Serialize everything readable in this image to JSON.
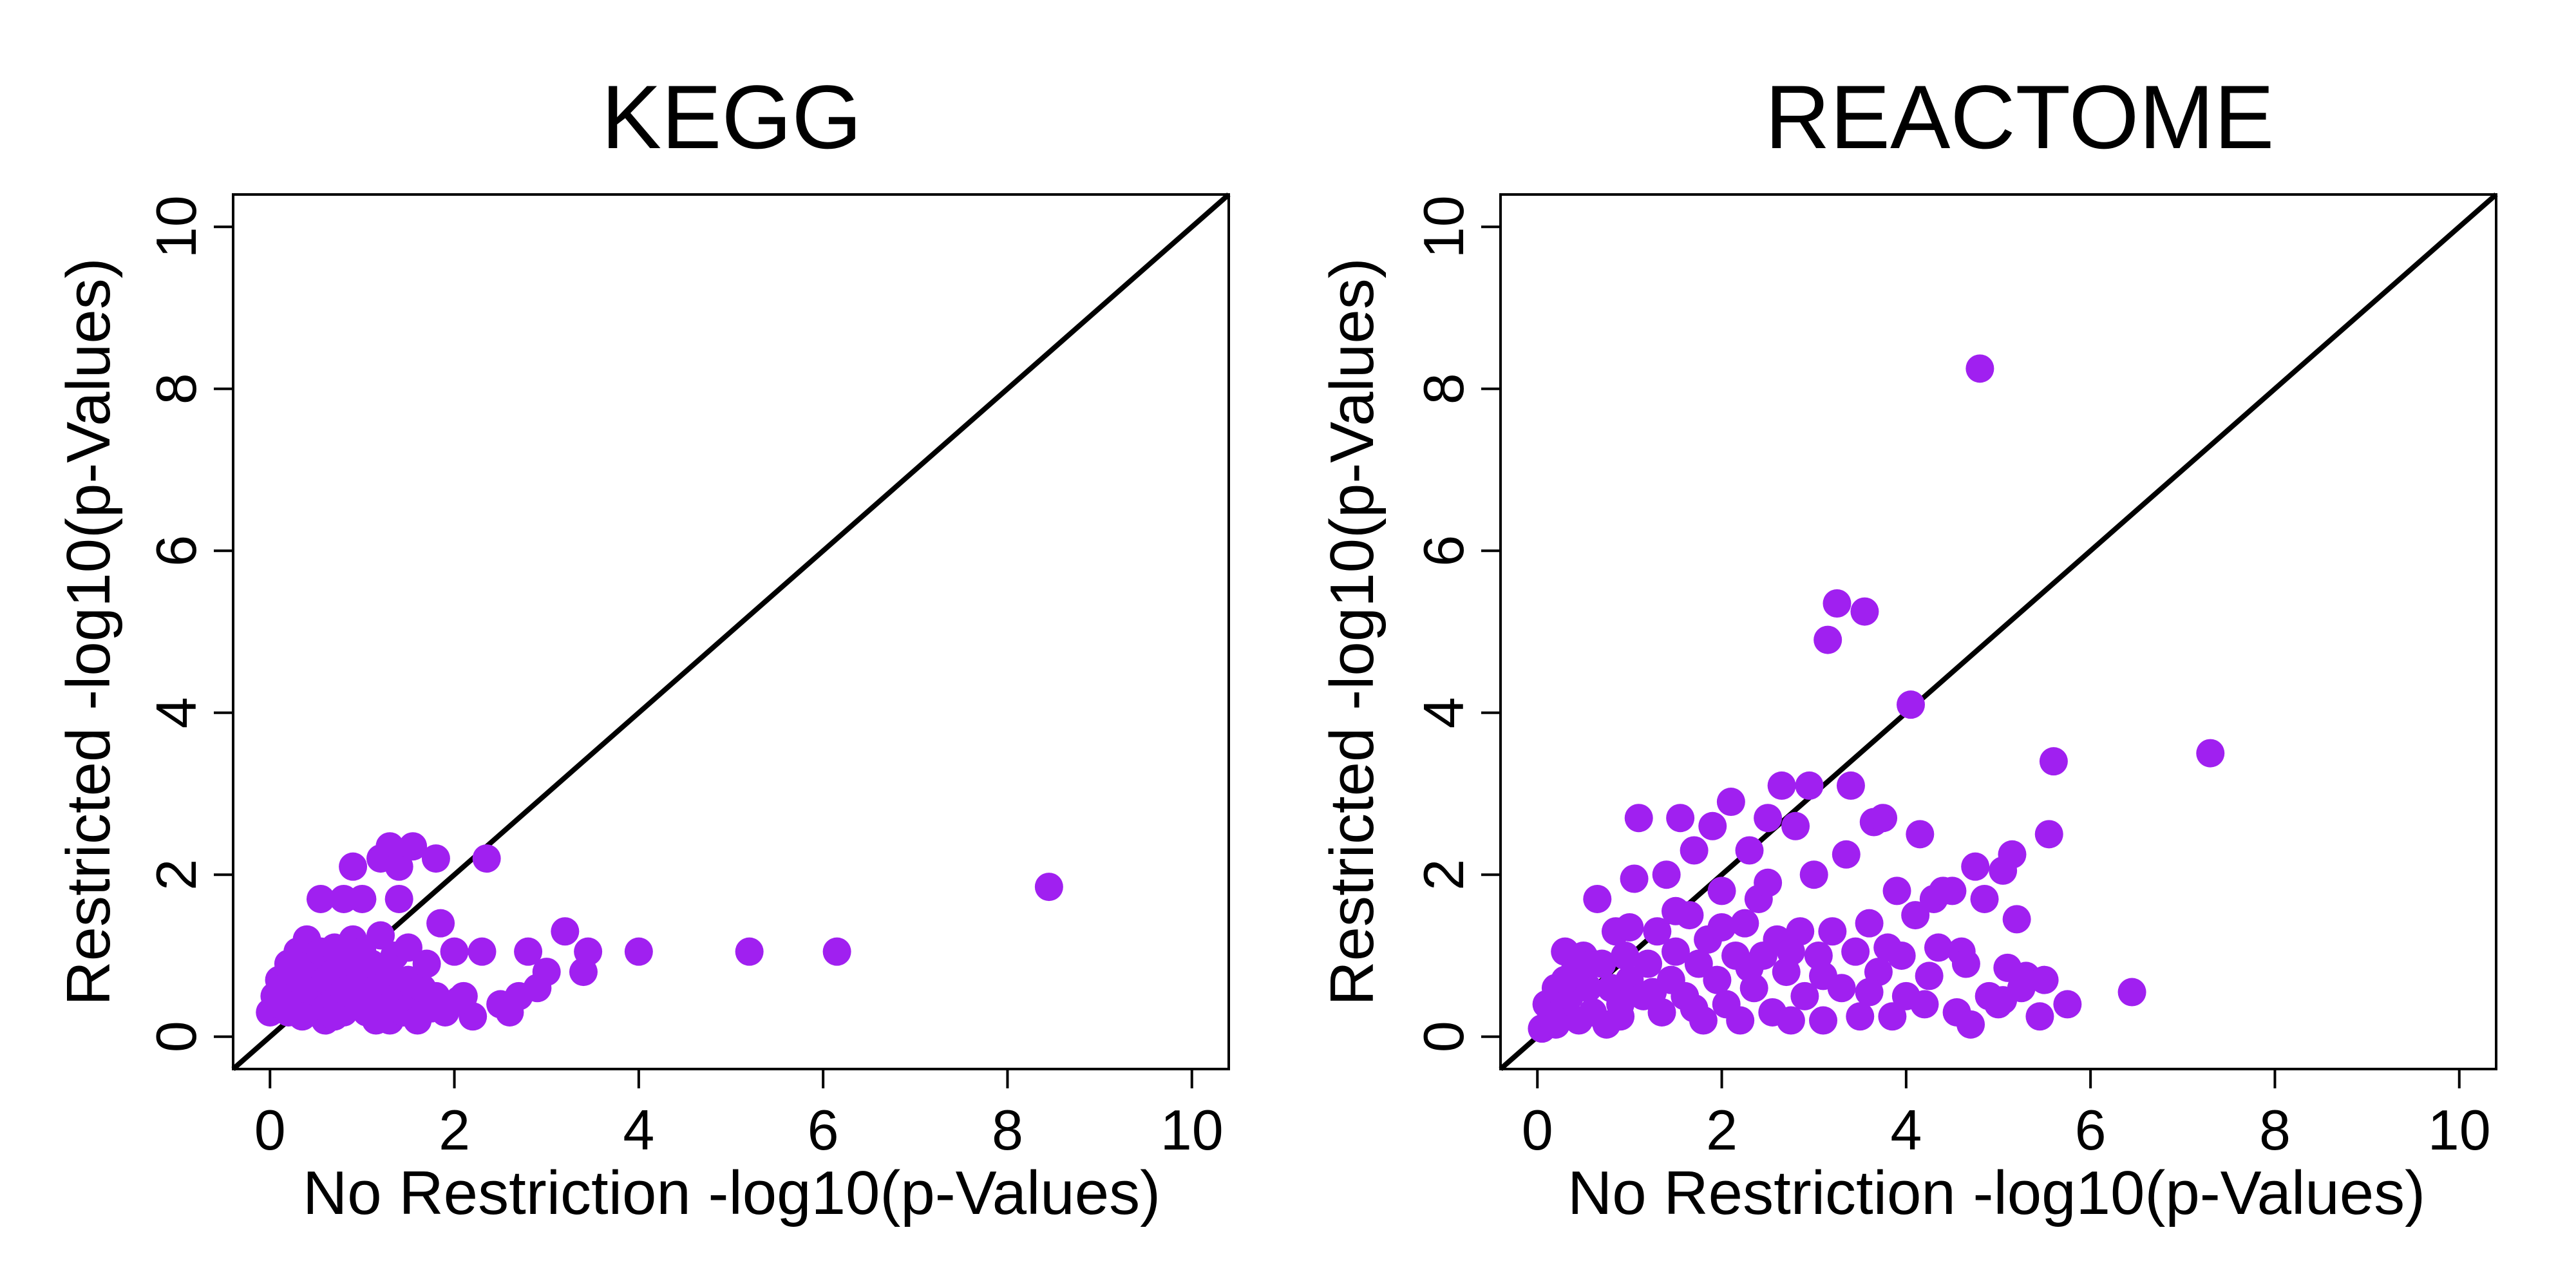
{
  "colors": {
    "point": "#A020F0",
    "line": "#000000"
  },
  "chart_data": [
    {
      "type": "scatter",
      "title": "KEGG",
      "xlabel": "No Restriction -log10(p-Values)",
      "ylabel": "Restricted -log10(p-Values)",
      "xlim": [
        -0.4,
        10.4
      ],
      "ylim": [
        -0.4,
        10.4
      ],
      "xticks": [
        0,
        2,
        4,
        6,
        8,
        10
      ],
      "yticks": [
        0,
        2,
        4,
        6,
        8,
        10
      ],
      "grid": false,
      "reference_line": "y = x",
      "points": [
        [
          0.0,
          0.3
        ],
        [
          0.05,
          0.5
        ],
        [
          0.1,
          0.4
        ],
        [
          0.1,
          0.7
        ],
        [
          0.15,
          0.6
        ],
        [
          0.2,
          0.3
        ],
        [
          0.2,
          0.9
        ],
        [
          0.25,
          0.5
        ],
        [
          0.3,
          1.05
        ],
        [
          0.3,
          0.4
        ],
        [
          0.35,
          0.8
        ],
        [
          0.4,
          1.2
        ],
        [
          0.4,
          0.6
        ],
        [
          0.45,
          0.3
        ],
        [
          0.5,
          0.9
        ],
        [
          0.5,
          0.5
        ],
        [
          0.55,
          1.05
        ],
        [
          0.6,
          0.2
        ],
        [
          0.6,
          0.7
        ],
        [
          0.65,
          0.4
        ],
        [
          0.7,
          1.1
        ],
        [
          0.7,
          0.8
        ],
        [
          0.75,
          0.5
        ],
        [
          0.8,
          0.9
        ],
        [
          0.8,
          0.3
        ],
        [
          0.85,
          1.0
        ],
        [
          0.9,
          0.6
        ],
        [
          0.9,
          1.2
        ],
        [
          0.95,
          0.4
        ],
        [
          1.0,
          0.8
        ],
        [
          1.0,
          1.05
        ],
        [
          1.05,
          0.3
        ],
        [
          1.1,
          0.5
        ],
        [
          1.1,
          0.9
        ],
        [
          1.15,
          0.2
        ],
        [
          1.2,
          0.6
        ],
        [
          1.2,
          1.25
        ],
        [
          1.25,
          0.4
        ],
        [
          1.3,
          0.8
        ],
        [
          1.3,
          0.2
        ],
        [
          1.35,
          1.0
        ],
        [
          1.4,
          0.5
        ],
        [
          1.45,
          0.3
        ],
        [
          1.5,
          0.7
        ],
        [
          1.5,
          1.1
        ],
        [
          1.55,
          0.4
        ],
        [
          1.6,
          0.2
        ],
        [
          1.65,
          0.6
        ],
        [
          1.7,
          0.9
        ],
        [
          1.8,
          0.5
        ],
        [
          1.85,
          1.4
        ],
        [
          1.9,
          0.3
        ],
        [
          2.0,
          1.05
        ],
        [
          2.1,
          0.5
        ],
        [
          2.2,
          0.25
        ],
        [
          2.3,
          1.05
        ],
        [
          2.5,
          0.4
        ],
        [
          2.6,
          0.3
        ],
        [
          2.7,
          0.5
        ],
        [
          2.8,
          1.05
        ],
        [
          2.9,
          0.6
        ],
        [
          3.0,
          0.8
        ],
        [
          3.2,
          1.3
        ],
        [
          3.4,
          0.8
        ],
        [
          3.45,
          1.05
        ],
        [
          4.0,
          1.05
        ],
        [
          5.2,
          1.05
        ],
        [
          6.15,
          1.05
        ],
        [
          8.45,
          1.85
        ],
        [
          0.55,
          1.7
        ],
        [
          0.8,
          1.7
        ],
        [
          1.0,
          1.7
        ],
        [
          0.9,
          2.1
        ],
        [
          1.2,
          2.2
        ],
        [
          1.3,
          2.35
        ],
        [
          1.4,
          2.1
        ],
        [
          1.55,
          2.35
        ],
        [
          1.8,
          2.2
        ],
        [
          2.35,
          2.2
        ],
        [
          1.4,
          1.7
        ],
        [
          0.25,
          0.8
        ],
        [
          0.35,
          0.25
        ],
        [
          0.6,
          0.35
        ],
        [
          0.7,
          0.25
        ],
        [
          1.25,
          0.35
        ],
        [
          1.75,
          0.35
        ],
        [
          2.05,
          0.45
        ]
      ]
    },
    {
      "type": "scatter",
      "title": "REACTOME",
      "xlabel": "No Restriction -log10(p-Values)",
      "ylabel": "Restricted -log10(p-Values)",
      "xlim": [
        -0.4,
        10.4
      ],
      "ylim": [
        -0.4,
        10.4
      ],
      "xticks": [
        0,
        2,
        4,
        6,
        8,
        10
      ],
      "yticks": [
        0,
        2,
        4,
        6,
        8,
        10
      ],
      "grid": false,
      "reference_line": "y = x",
      "points": [
        [
          0.05,
          0.1
        ],
        [
          0.1,
          0.4
        ],
        [
          0.15,
          0.25
        ],
        [
          0.2,
          0.6
        ],
        [
          0.25,
          0.3
        ],
        [
          0.3,
          1.05
        ],
        [
          0.35,
          0.5
        ],
        [
          0.4,
          0.8
        ],
        [
          0.45,
          0.2
        ],
        [
          0.5,
          1.0
        ],
        [
          0.55,
          0.6
        ],
        [
          0.6,
          0.3
        ],
        [
          0.65,
          1.7
        ],
        [
          0.7,
          0.9
        ],
        [
          0.75,
          0.15
        ],
        [
          0.8,
          0.6
        ],
        [
          0.85,
          1.3
        ],
        [
          0.9,
          0.4
        ],
        [
          0.95,
          1.0
        ],
        [
          1.0,
          0.7
        ],
        [
          1.05,
          1.95
        ],
        [
          1.1,
          2.7
        ],
        [
          1.15,
          0.5
        ],
        [
          1.2,
          0.9
        ],
        [
          1.3,
          1.3
        ],
        [
          1.35,
          0.3
        ],
        [
          1.4,
          2.0
        ],
        [
          1.45,
          0.7
        ],
        [
          1.5,
          1.05
        ],
        [
          1.55,
          2.7
        ],
        [
          1.6,
          0.5
        ],
        [
          1.65,
          1.5
        ],
        [
          1.7,
          2.3
        ],
        [
          1.75,
          0.9
        ],
        [
          1.8,
          0.2
        ],
        [
          1.85,
          1.2
        ],
        [
          1.9,
          2.6
        ],
        [
          1.95,
          0.7
        ],
        [
          2.0,
          1.8
        ],
        [
          2.05,
          0.4
        ],
        [
          2.1,
          2.9
        ],
        [
          2.15,
          1.0
        ],
        [
          2.2,
          0.2
        ],
        [
          2.25,
          1.4
        ],
        [
          2.3,
          2.3
        ],
        [
          2.35,
          0.6
        ],
        [
          2.4,
          1.7
        ],
        [
          2.45,
          1.0
        ],
        [
          2.5,
          2.7
        ],
        [
          2.55,
          0.3
        ],
        [
          2.6,
          1.2
        ],
        [
          2.65,
          3.1
        ],
        [
          2.7,
          0.8
        ],
        [
          2.75,
          0.2
        ],
        [
          2.8,
          2.6
        ],
        [
          2.85,
          1.3
        ],
        [
          2.9,
          0.5
        ],
        [
          2.95,
          3.1
        ],
        [
          3.0,
          2.0
        ],
        [
          3.05,
          1.0
        ],
        [
          3.1,
          0.2
        ],
        [
          3.15,
          4.9
        ],
        [
          3.2,
          1.3
        ],
        [
          3.25,
          5.35
        ],
        [
          3.3,
          0.6
        ],
        [
          3.35,
          2.25
        ],
        [
          3.4,
          3.1
        ],
        [
          3.45,
          1.05
        ],
        [
          3.5,
          0.25
        ],
        [
          3.55,
          5.25
        ],
        [
          3.6,
          1.4
        ],
        [
          3.65,
          2.65
        ],
        [
          3.7,
          0.8
        ],
        [
          3.75,
          2.7
        ],
        [
          3.8,
          1.1
        ],
        [
          3.85,
          0.25
        ],
        [
          3.9,
          1.8
        ],
        [
          3.95,
          1.0
        ],
        [
          4.0,
          0.5
        ],
        [
          4.05,
          4.1
        ],
        [
          4.1,
          1.5
        ],
        [
          4.15,
          2.5
        ],
        [
          4.2,
          0.4
        ],
        [
          4.3,
          1.7
        ],
        [
          4.4,
          1.8
        ],
        [
          4.5,
          1.8
        ],
        [
          4.55,
          0.3
        ],
        [
          4.6,
          1.05
        ],
        [
          4.65,
          0.9
        ],
        [
          4.7,
          0.15
        ],
        [
          4.75,
          2.1
        ],
        [
          4.8,
          8.25
        ],
        [
          4.85,
          1.7
        ],
        [
          4.9,
          0.5
        ],
        [
          5.0,
          0.4
        ],
        [
          5.05,
          2.05
        ],
        [
          5.1,
          0.85
        ],
        [
          5.15,
          2.25
        ],
        [
          5.2,
          1.45
        ],
        [
          5.25,
          0.6
        ],
        [
          5.3,
          0.75
        ],
        [
          5.45,
          0.25
        ],
        [
          5.5,
          0.7
        ],
        [
          5.55,
          2.5
        ],
        [
          5.6,
          3.4
        ],
        [
          5.75,
          0.4
        ],
        [
          6.45,
          0.55
        ],
        [
          7.3,
          3.5
        ],
        [
          0.3,
          0.7
        ],
        [
          0.6,
          0.9
        ],
        [
          0.9,
          0.25
        ],
        [
          1.25,
          0.55
        ],
        [
          1.7,
          0.35
        ],
        [
          2.3,
          0.85
        ],
        [
          2.75,
          1.05
        ],
        [
          3.1,
          0.75
        ],
        [
          3.6,
          0.55
        ],
        [
          4.25,
          0.75
        ],
        [
          1.0,
          1.35
        ],
        [
          1.5,
          1.55
        ],
        [
          2.0,
          1.35
        ],
        [
          2.5,
          1.9
        ],
        [
          4.35,
          1.1
        ],
        [
          5.05,
          0.45
        ],
        [
          0.2,
          0.15
        ]
      ]
    }
  ]
}
